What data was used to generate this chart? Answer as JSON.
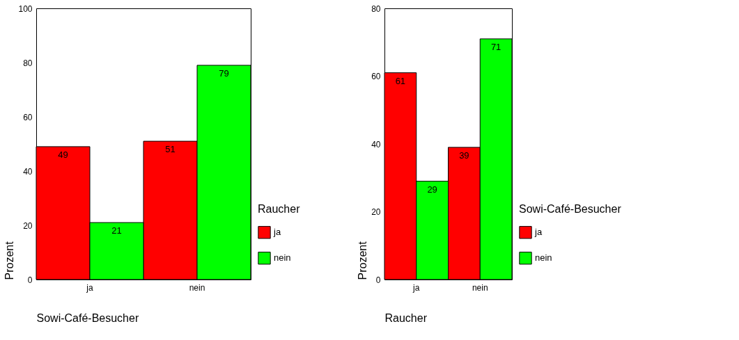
{
  "chart_data": [
    {
      "type": "bar",
      "categories": [
        "ja",
        "nein"
      ],
      "xlabel": "Sowi-Café-Besucher",
      "ylabel": "Prozent",
      "legend_title": "Raucher",
      "ylim": [
        0,
        100
      ],
      "yticks": [
        0,
        20,
        40,
        60,
        80,
        100
      ],
      "grid": false,
      "legend": "right",
      "data_labels": true,
      "series": [
        {
          "name": "ja",
          "color": "#ff0000",
          "values": [
            49,
            51
          ]
        },
        {
          "name": "nein",
          "color": "#00ff00",
          "values": [
            21,
            79
          ]
        }
      ]
    },
    {
      "type": "bar",
      "categories": [
        "ja",
        "nein"
      ],
      "xlabel": "Raucher",
      "ylabel": "Prozent",
      "legend_title": "Sowi-Café-Besucher",
      "ylim": [
        0,
        80
      ],
      "yticks": [
        0,
        20,
        40,
        60,
        80
      ],
      "grid": false,
      "legend": "right",
      "data_labels": true,
      "series": [
        {
          "name": "ja",
          "color": "#ff0000",
          "values": [
            61,
            39
          ]
        },
        {
          "name": "nein",
          "color": "#00ff00",
          "values": [
            29,
            71
          ]
        }
      ]
    }
  ]
}
